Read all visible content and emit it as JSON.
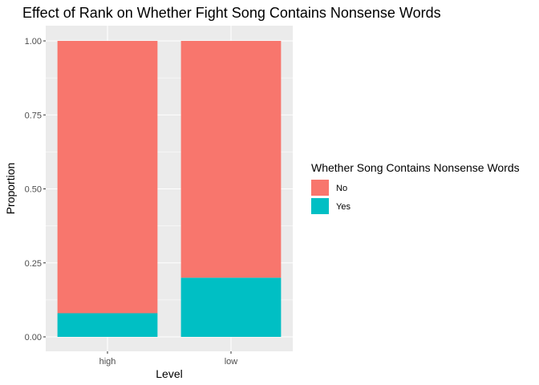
{
  "chart_data": {
    "type": "bar",
    "stacked": true,
    "title": "Effect of Rank on Whether Fight Song Contains Nonsense Words",
    "xlabel": "Level",
    "ylabel": "Proportion",
    "categories": [
      "high",
      "low"
    ],
    "series": [
      {
        "name": "No",
        "values": [
          0.92,
          0.8
        ],
        "color": "#F8766D"
      },
      {
        "name": "Yes",
        "values": [
          0.08,
          0.2
        ],
        "color": "#00BFC4"
      }
    ],
    "ylim": [
      0,
      1
    ],
    "yticks": [
      0.0,
      0.25,
      0.5,
      0.75,
      1.0
    ],
    "ytick_labels": [
      "0.00",
      "0.25",
      "0.50",
      "0.75",
      "1.00"
    ],
    "grid": true,
    "legend": {
      "title": "Whether Song Contains Nonsense Words",
      "placement": "right"
    },
    "panel_background": "#EBEBEB"
  }
}
